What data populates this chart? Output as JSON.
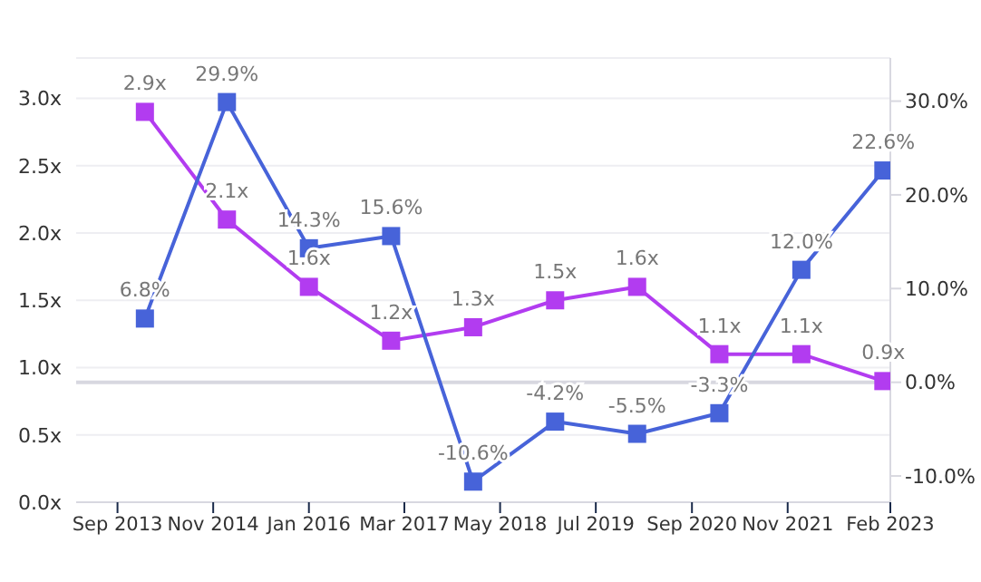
{
  "chart_data": {
    "type": "line",
    "x": [
      "2014-01",
      "2015-01",
      "2016-01",
      "2017-01",
      "2018-01",
      "2019-01",
      "2020-01",
      "2021-01",
      "2022-01",
      "2023-01"
    ],
    "xlim": [
      "2013-03",
      "2023-02"
    ],
    "xticks": [
      {
        "value": "2013-09",
        "label": "Sep 2013"
      },
      {
        "value": "2014-11",
        "label": "Nov 2014"
      },
      {
        "value": "2016-01",
        "label": "Jan 2016"
      },
      {
        "value": "2017-03",
        "label": "Mar 2017"
      },
      {
        "value": "2018-05",
        "label": "May 2018"
      },
      {
        "value": "2019-07",
        "label": "Jul 2019"
      },
      {
        "value": "2020-09",
        "label": "Sep 2020"
      },
      {
        "value": "2021-11",
        "label": "Nov 2021"
      },
      {
        "value": "2023-02",
        "label": "Feb 2023"
      }
    ],
    "ylim": [
      0,
      3.3
    ],
    "yticks": [
      {
        "value": 0,
        "label": "0.0x"
      },
      {
        "value": 0.5,
        "label": "0.5x"
      },
      {
        "value": 1,
        "label": "1.0x"
      },
      {
        "value": 1.5,
        "label": "1.5x"
      },
      {
        "value": 2,
        "label": "2.0x"
      },
      {
        "value": 2.5,
        "label": "2.5x"
      },
      {
        "value": 3,
        "label": "3.0x"
      }
    ],
    "y2lim": [
      -12.8,
      34.6
    ],
    "y2ticks": [
      {
        "value": -10,
        "label": "-10.0%"
      },
      {
        "value": 0,
        "label": "0.0%"
      },
      {
        "value": 10,
        "label": "10.0%"
      },
      {
        "value": 20,
        "label": "20.0%"
      },
      {
        "value": 30,
        "label": "30.0%"
      }
    ],
    "series": [
      {
        "color": "#b23cf0",
        "axis": "y",
        "values": [
          2.9,
          2.1,
          1.6,
          1.2,
          1.3,
          1.5,
          1.6,
          1.1,
          1.1,
          0.9
        ],
        "value_labels": [
          "2.9x",
          "2.1x",
          "1.6x",
          "1.2x",
          "1.3x",
          "1.5x",
          "1.6x",
          "1.1x",
          "1.1x",
          "0.9x"
        ]
      },
      {
        "color": "#4763d9",
        "axis": "y2",
        "values": [
          6.8,
          29.9,
          14.3,
          15.6,
          -10.6,
          -4.2,
          -5.5,
          -3.3,
          12.0,
          22.6
        ],
        "value_labels": [
          "6.8%",
          "29.9%",
          "14.3%",
          "15.6%",
          "-10.6%",
          "-4.2%",
          "-5.5%",
          "-3.3%",
          "12.0%",
          "22.6%"
        ]
      }
    ],
    "ref_lines": [
      {
        "axis": "y2",
        "value": 0,
        "color": "#d8d8e0"
      }
    ],
    "grid": "y",
    "marker": "square",
    "line_style": "solid"
  }
}
